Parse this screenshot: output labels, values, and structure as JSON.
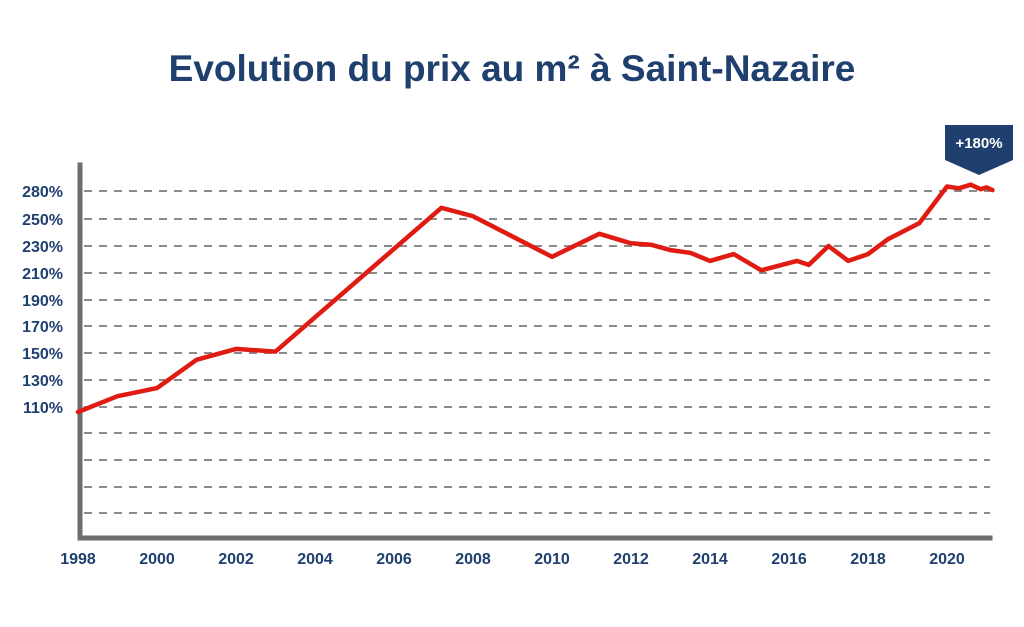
{
  "chart_data": {
    "type": "line",
    "title": "Evolution du prix au m² à Saint-Nazaire",
    "xlabel": "",
    "ylabel": "",
    "x_tick_labels": [
      "1998",
      "2000",
      "2002",
      "2004",
      "2006",
      "2008",
      "2010",
      "2012",
      "2014",
      "2016",
      "2018",
      "2020"
    ],
    "y_tick_labels": [
      "110%",
      "130%",
      "150%",
      "170%",
      "190%",
      "210%",
      "230%",
      "250%",
      "280%"
    ],
    "xlim": [
      1998,
      2021.2
    ],
    "grid": true,
    "annotation": "+180%",
    "colors": {
      "line": "#e01b12",
      "text": "#1f3f6e",
      "axis": "#6e6e6e",
      "grid": "#8a8a8a",
      "badge": "#1f3f6e"
    },
    "series": [
      {
        "x": [
          1998,
          1999,
          2000,
          2001,
          2002,
          2003,
          2007.2,
          2008,
          2010,
          2011.2,
          2012,
          2012.5,
          2013,
          2013.5,
          2014,
          2014.6,
          2015.3,
          2016.2,
          2016.5,
          2017,
          2017.5,
          2018,
          2018.5,
          2019.3,
          2020,
          2020.3,
          2020.6,
          2020.85,
          2021,
          2021.15
        ],
        "values": [
          107,
          118,
          124,
          145,
          153,
          151,
          262,
          253,
          222,
          239,
          232,
          231,
          227,
          225,
          219,
          224,
          212,
          219,
          216,
          230,
          219,
          224,
          235,
          247,
          285,
          283,
          287,
          282,
          284,
          281
        ]
      }
    ]
  }
}
